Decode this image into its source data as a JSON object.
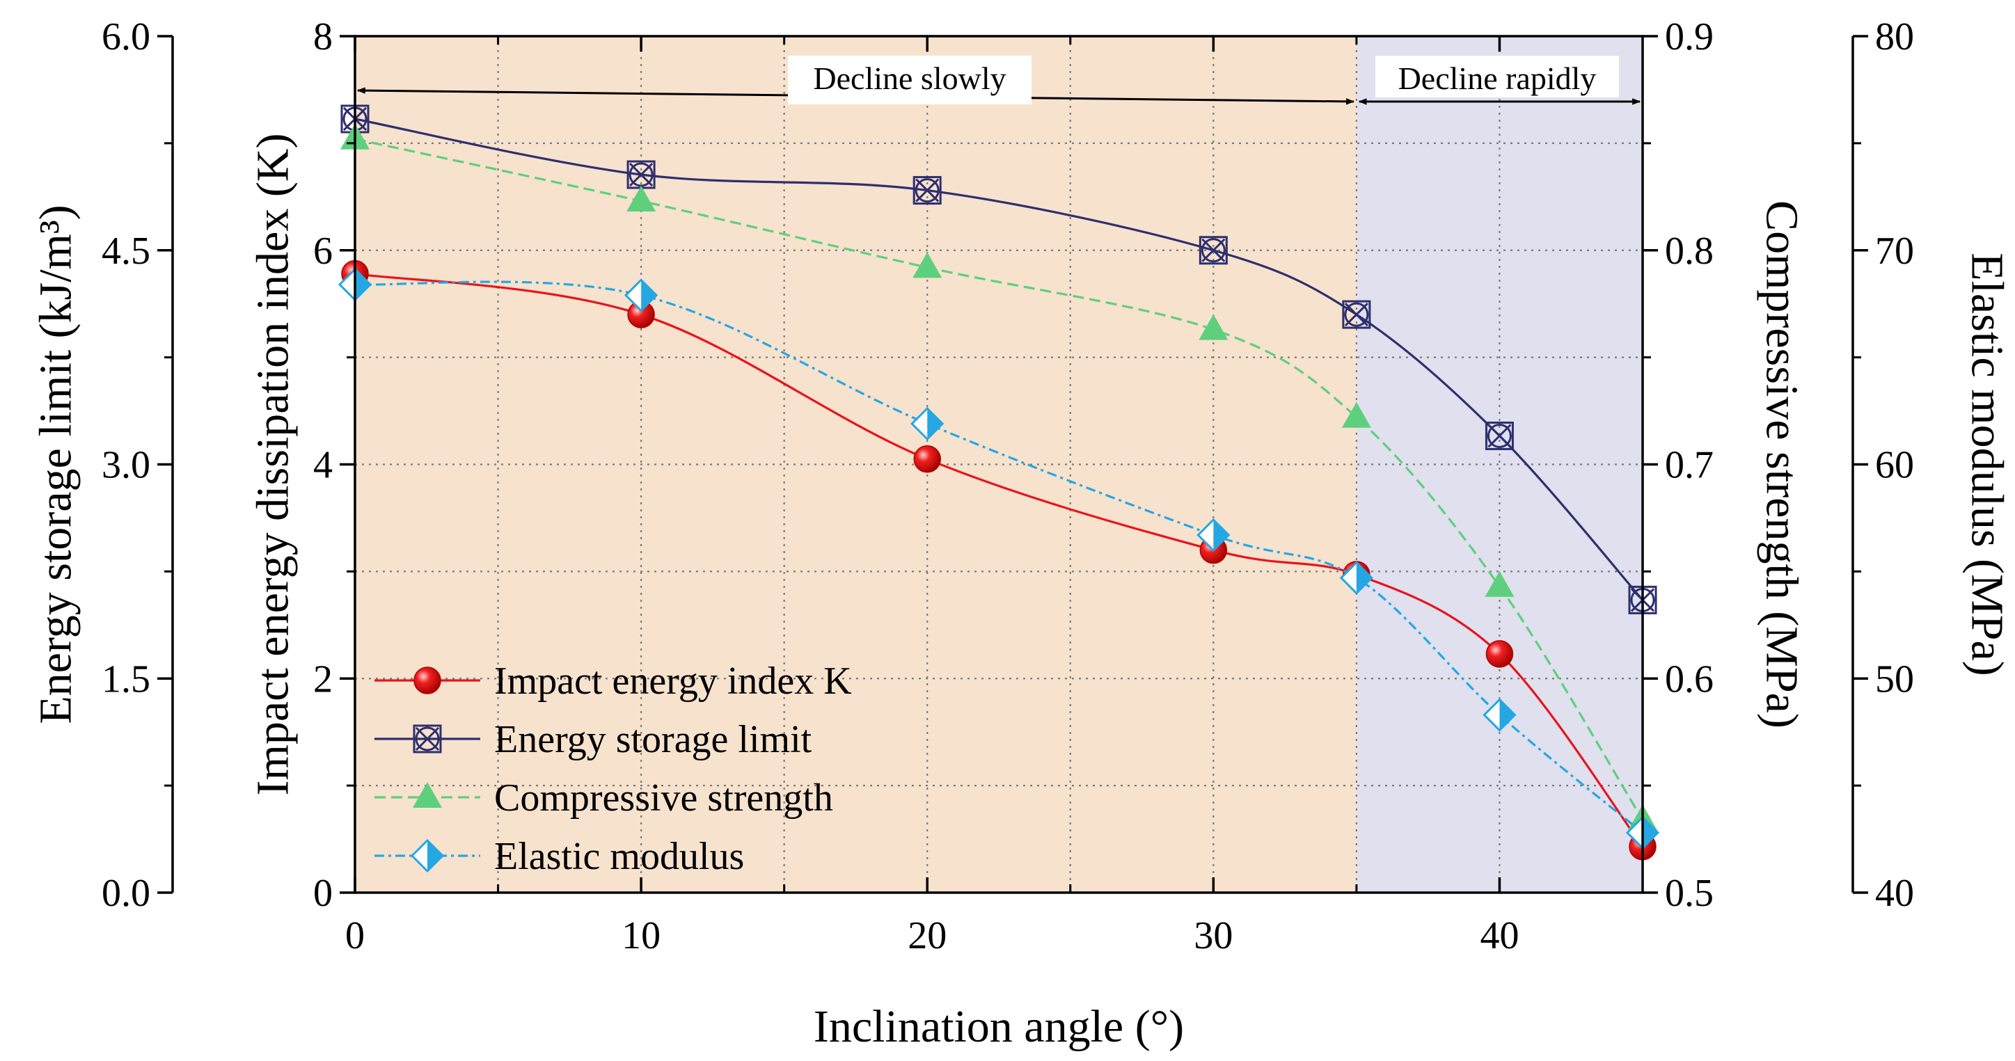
{
  "chart_data": {
    "type": "line",
    "xlabel": "Inclination angle (°)",
    "x": [
      0,
      10,
      20,
      30,
      35,
      40,
      45
    ],
    "xlim": [
      0,
      45
    ],
    "xticks": [
      0,
      10,
      20,
      30,
      40
    ],
    "axes": [
      {
        "id": "energy",
        "label": "Energy storage limit (kJ/m³)",
        "ylim": [
          0,
          6
        ],
        "ticks": [
          "0.0",
          "1.5",
          "3.0",
          "4.5",
          "6.0"
        ],
        "tick_values": [
          0,
          1.5,
          3,
          4.5,
          6
        ]
      },
      {
        "id": "k",
        "label": "Impact energy dissipation index (K)",
        "ylim": [
          0,
          8
        ],
        "ticks": [
          "0",
          "2",
          "4",
          "6",
          "8"
        ],
        "tick_values": [
          0,
          2,
          4,
          6,
          8
        ]
      },
      {
        "id": "strength",
        "label": "Compressive strength (MPa)",
        "ylim": [
          0.5,
          0.9
        ],
        "ticks": [
          "0.5",
          "0.6",
          "0.7",
          "0.8",
          "0.9"
        ],
        "tick_values": [
          0.5,
          0.6,
          0.7,
          0.8,
          0.9
        ]
      },
      {
        "id": "modulus",
        "label": "Elastic modulus (MPa)",
        "ylim": [
          40,
          80
        ],
        "ticks": [
          "40",
          "50",
          "60",
          "70",
          "80"
        ],
        "tick_values": [
          40,
          50,
          60,
          70,
          80
        ]
      }
    ],
    "series": [
      {
        "name": "Impact energy index K",
        "axis": "k",
        "color": "#e8141c",
        "marker": "sphere",
        "dash": "",
        "values": [
          5.78,
          5.4,
          4.05,
          3.2,
          2.97,
          2.23,
          0.43
        ]
      },
      {
        "name": "Energy storage limit",
        "axis": "energy",
        "color": "#2e2f6e",
        "marker": "circle-x",
        "dash": "",
        "values": [
          5.42,
          5.03,
          4.92,
          4.5,
          4.05,
          3.2,
          2.05
        ]
      },
      {
        "name": "Compressive strength",
        "axis": "strength",
        "color": "#5ed07d",
        "marker": "triangle",
        "dash": "16 8",
        "values": [
          0.852,
          0.823,
          0.792,
          0.763,
          0.722,
          0.643,
          0.534
        ]
      },
      {
        "name": "Elastic modulus",
        "axis": "modulus",
        "color": "#25a7e3",
        "marker": "diamond",
        "dash": "14 6 4 6",
        "values": [
          68.4,
          67.9,
          61.9,
          56.7,
          54.7,
          48.3,
          42.8
        ]
      }
    ],
    "regions": [
      {
        "label": "Decline slowly",
        "x_start": 0,
        "x_end": 35,
        "color": "#f7e2cd"
      },
      {
        "label": "Decline rapidly",
        "x_start": 35,
        "x_end": 45,
        "color": "#e0e0ee"
      }
    ],
    "legend": "lower-left",
    "grid": true
  }
}
